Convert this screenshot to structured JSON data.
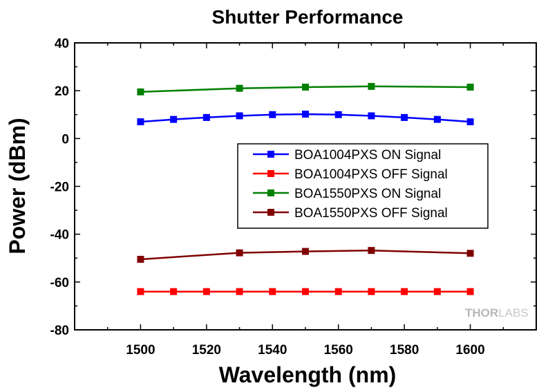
{
  "chart_data": {
    "type": "line",
    "title": "Shutter Performance",
    "xlabel": "Wavelength (nm)",
    "ylabel": "Power (dBm)",
    "xlim": [
      1480,
      1620
    ],
    "ylim": [
      -80,
      40
    ],
    "x_ticks": [
      1500,
      1520,
      1540,
      1560,
      1580,
      1600
    ],
    "y_ticks": [
      -80,
      -60,
      -40,
      -20,
      0,
      20,
      40
    ],
    "x_minor_step": 10,
    "y_minor_step": 10,
    "grid": false,
    "legend_position": "center-right",
    "series": [
      {
        "name": "BOA1004PXS ON Signal",
        "color": "#0000ff",
        "x": [
          1500,
          1510,
          1520,
          1530,
          1540,
          1550,
          1560,
          1570,
          1580,
          1590,
          1600
        ],
        "y": [
          7,
          8,
          8.8,
          9.5,
          10,
          10.2,
          10,
          9.5,
          8.8,
          8,
          7
        ]
      },
      {
        "name": "BOA1004PXS OFF Signal",
        "color": "#ff0000",
        "x": [
          1500,
          1510,
          1520,
          1530,
          1540,
          1550,
          1560,
          1570,
          1580,
          1590,
          1600
        ],
        "y": [
          -64,
          -64,
          -64,
          -64,
          -64,
          -64,
          -64,
          -64,
          -64,
          -64,
          -64
        ]
      },
      {
        "name": "BOA1550PXS ON Signal",
        "color": "#008000",
        "x": [
          1500,
          1530,
          1550,
          1570,
          1600
        ],
        "y": [
          19.5,
          21,
          21.5,
          21.8,
          21.5
        ]
      },
      {
        "name": "BOA1550PXS OFF Signal",
        "color": "#800000",
        "x": [
          1500,
          1530,
          1550,
          1570,
          1600
        ],
        "y": [
          -50.5,
          -47.8,
          -47.2,
          -46.8,
          -48
        ]
      }
    ]
  },
  "watermark": {
    "part1": "THOR",
    "part2": "LABS"
  }
}
